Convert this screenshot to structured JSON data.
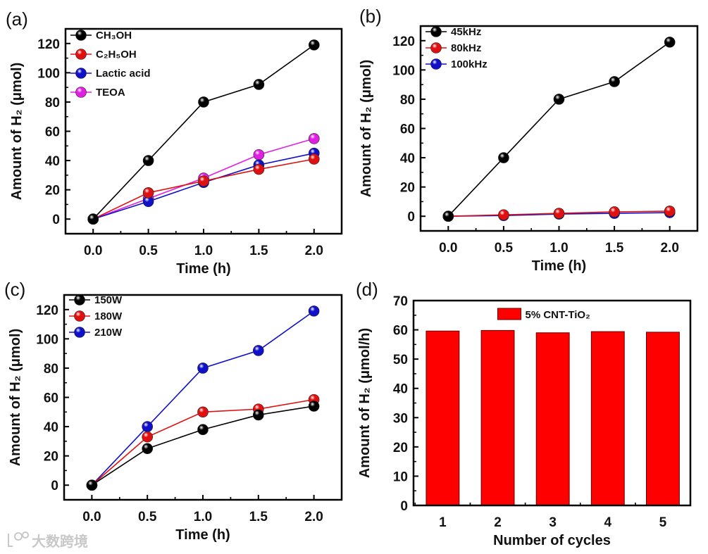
{
  "watermark": "大数跨境",
  "chart_data": [
    {
      "panel": "(a)",
      "type": "line",
      "xlabel": "Time (h)",
      "ylabel": "Amount of H₂ (μmol)",
      "x": [
        0.0,
        0.5,
        1.0,
        1.5,
        2.0
      ],
      "xticks": [
        "0.0",
        "0.5",
        "1.0",
        "1.5",
        "2.0"
      ],
      "yticks": [
        "0",
        "20",
        "40",
        "60",
        "80",
        "100",
        "120"
      ],
      "xlim": [
        -0.25,
        2.25
      ],
      "ylim": [
        -10,
        130
      ],
      "legend": "top-left",
      "series": [
        {
          "name": "CH₃OH",
          "color": "#000000",
          "values": [
            0,
            40,
            80,
            92,
            119
          ]
        },
        {
          "name": "C₂H₅OH",
          "color": "#e01010",
          "values": [
            0,
            18,
            26,
            34,
            41
          ]
        },
        {
          "name": "Lactic acid",
          "color": "#1010c8",
          "values": [
            0,
            12,
            25,
            37,
            45
          ]
        },
        {
          "name": "TEOA",
          "color": "#e020e0",
          "values": [
            0,
            14,
            28,
            44,
            55
          ]
        }
      ]
    },
    {
      "panel": "(b)",
      "type": "line",
      "xlabel": "Time (h)",
      "ylabel": "Amount of H₂ (μmol)",
      "x": [
        0.0,
        0.5,
        1.0,
        1.5,
        2.0
      ],
      "xticks": [
        "0.0",
        "0.5",
        "1.0",
        "1.5",
        "2.0"
      ],
      "yticks": [
        "0",
        "20",
        "40",
        "60",
        "80",
        "100",
        "120"
      ],
      "xlim": [
        -0.25,
        2.25
      ],
      "ylim": [
        -10,
        130
      ],
      "legend": "top-left",
      "series": [
        {
          "name": "45kHz",
          "color": "#000000",
          "values": [
            0,
            40,
            80,
            92,
            119
          ]
        },
        {
          "name": "80kHz",
          "color": "#e01010",
          "values": [
            0,
            1,
            2,
            3,
            3.5
          ]
        },
        {
          "name": "100kHz",
          "color": "#1010c8",
          "values": [
            0,
            0.5,
            1.5,
            2,
            2.5
          ]
        }
      ]
    },
    {
      "panel": "(c)",
      "type": "line",
      "xlabel": "Time (h)",
      "ylabel": "Amount of H₂ (μmol)",
      "x": [
        0.0,
        0.5,
        1.0,
        1.5,
        2.0
      ],
      "xticks": [
        "0.0",
        "0.5",
        "1.0",
        "1.5",
        "2.0"
      ],
      "yticks": [
        "0",
        "20",
        "40",
        "60",
        "80",
        "100",
        "120"
      ],
      "xlim": [
        -0.25,
        2.25
      ],
      "ylim": [
        -10,
        130
      ],
      "legend": "top-left",
      "series": [
        {
          "name": "150W",
          "color": "#000000",
          "values": [
            0,
            25,
            38,
            48,
            54
          ]
        },
        {
          "name": "180W",
          "color": "#e01010",
          "values": [
            0,
            33,
            50,
            52,
            58.5
          ]
        },
        {
          "name": "210W",
          "color": "#1010c8",
          "values": [
            0,
            40,
            80,
            92,
            119
          ]
        }
      ]
    },
    {
      "panel": "(d)",
      "type": "bar",
      "xlabel": "Number of cycles",
      "ylabel": "Amount of H₂ (μmol/h)",
      "categories": [
        "1",
        "2",
        "3",
        "4",
        "5"
      ],
      "yticks": [
        "0",
        "10",
        "20",
        "30",
        "40",
        "50",
        "60",
        "70"
      ],
      "xlim": [
        0.47,
        5.5
      ],
      "ylim": [
        0,
        70
      ],
      "legend": "top-center",
      "series": [
        {
          "name": "5% CNT-TiO₂",
          "color": "#ff0000",
          "values": [
            59.6,
            59.8,
            59.0,
            59.4,
            59.2
          ]
        }
      ]
    }
  ]
}
